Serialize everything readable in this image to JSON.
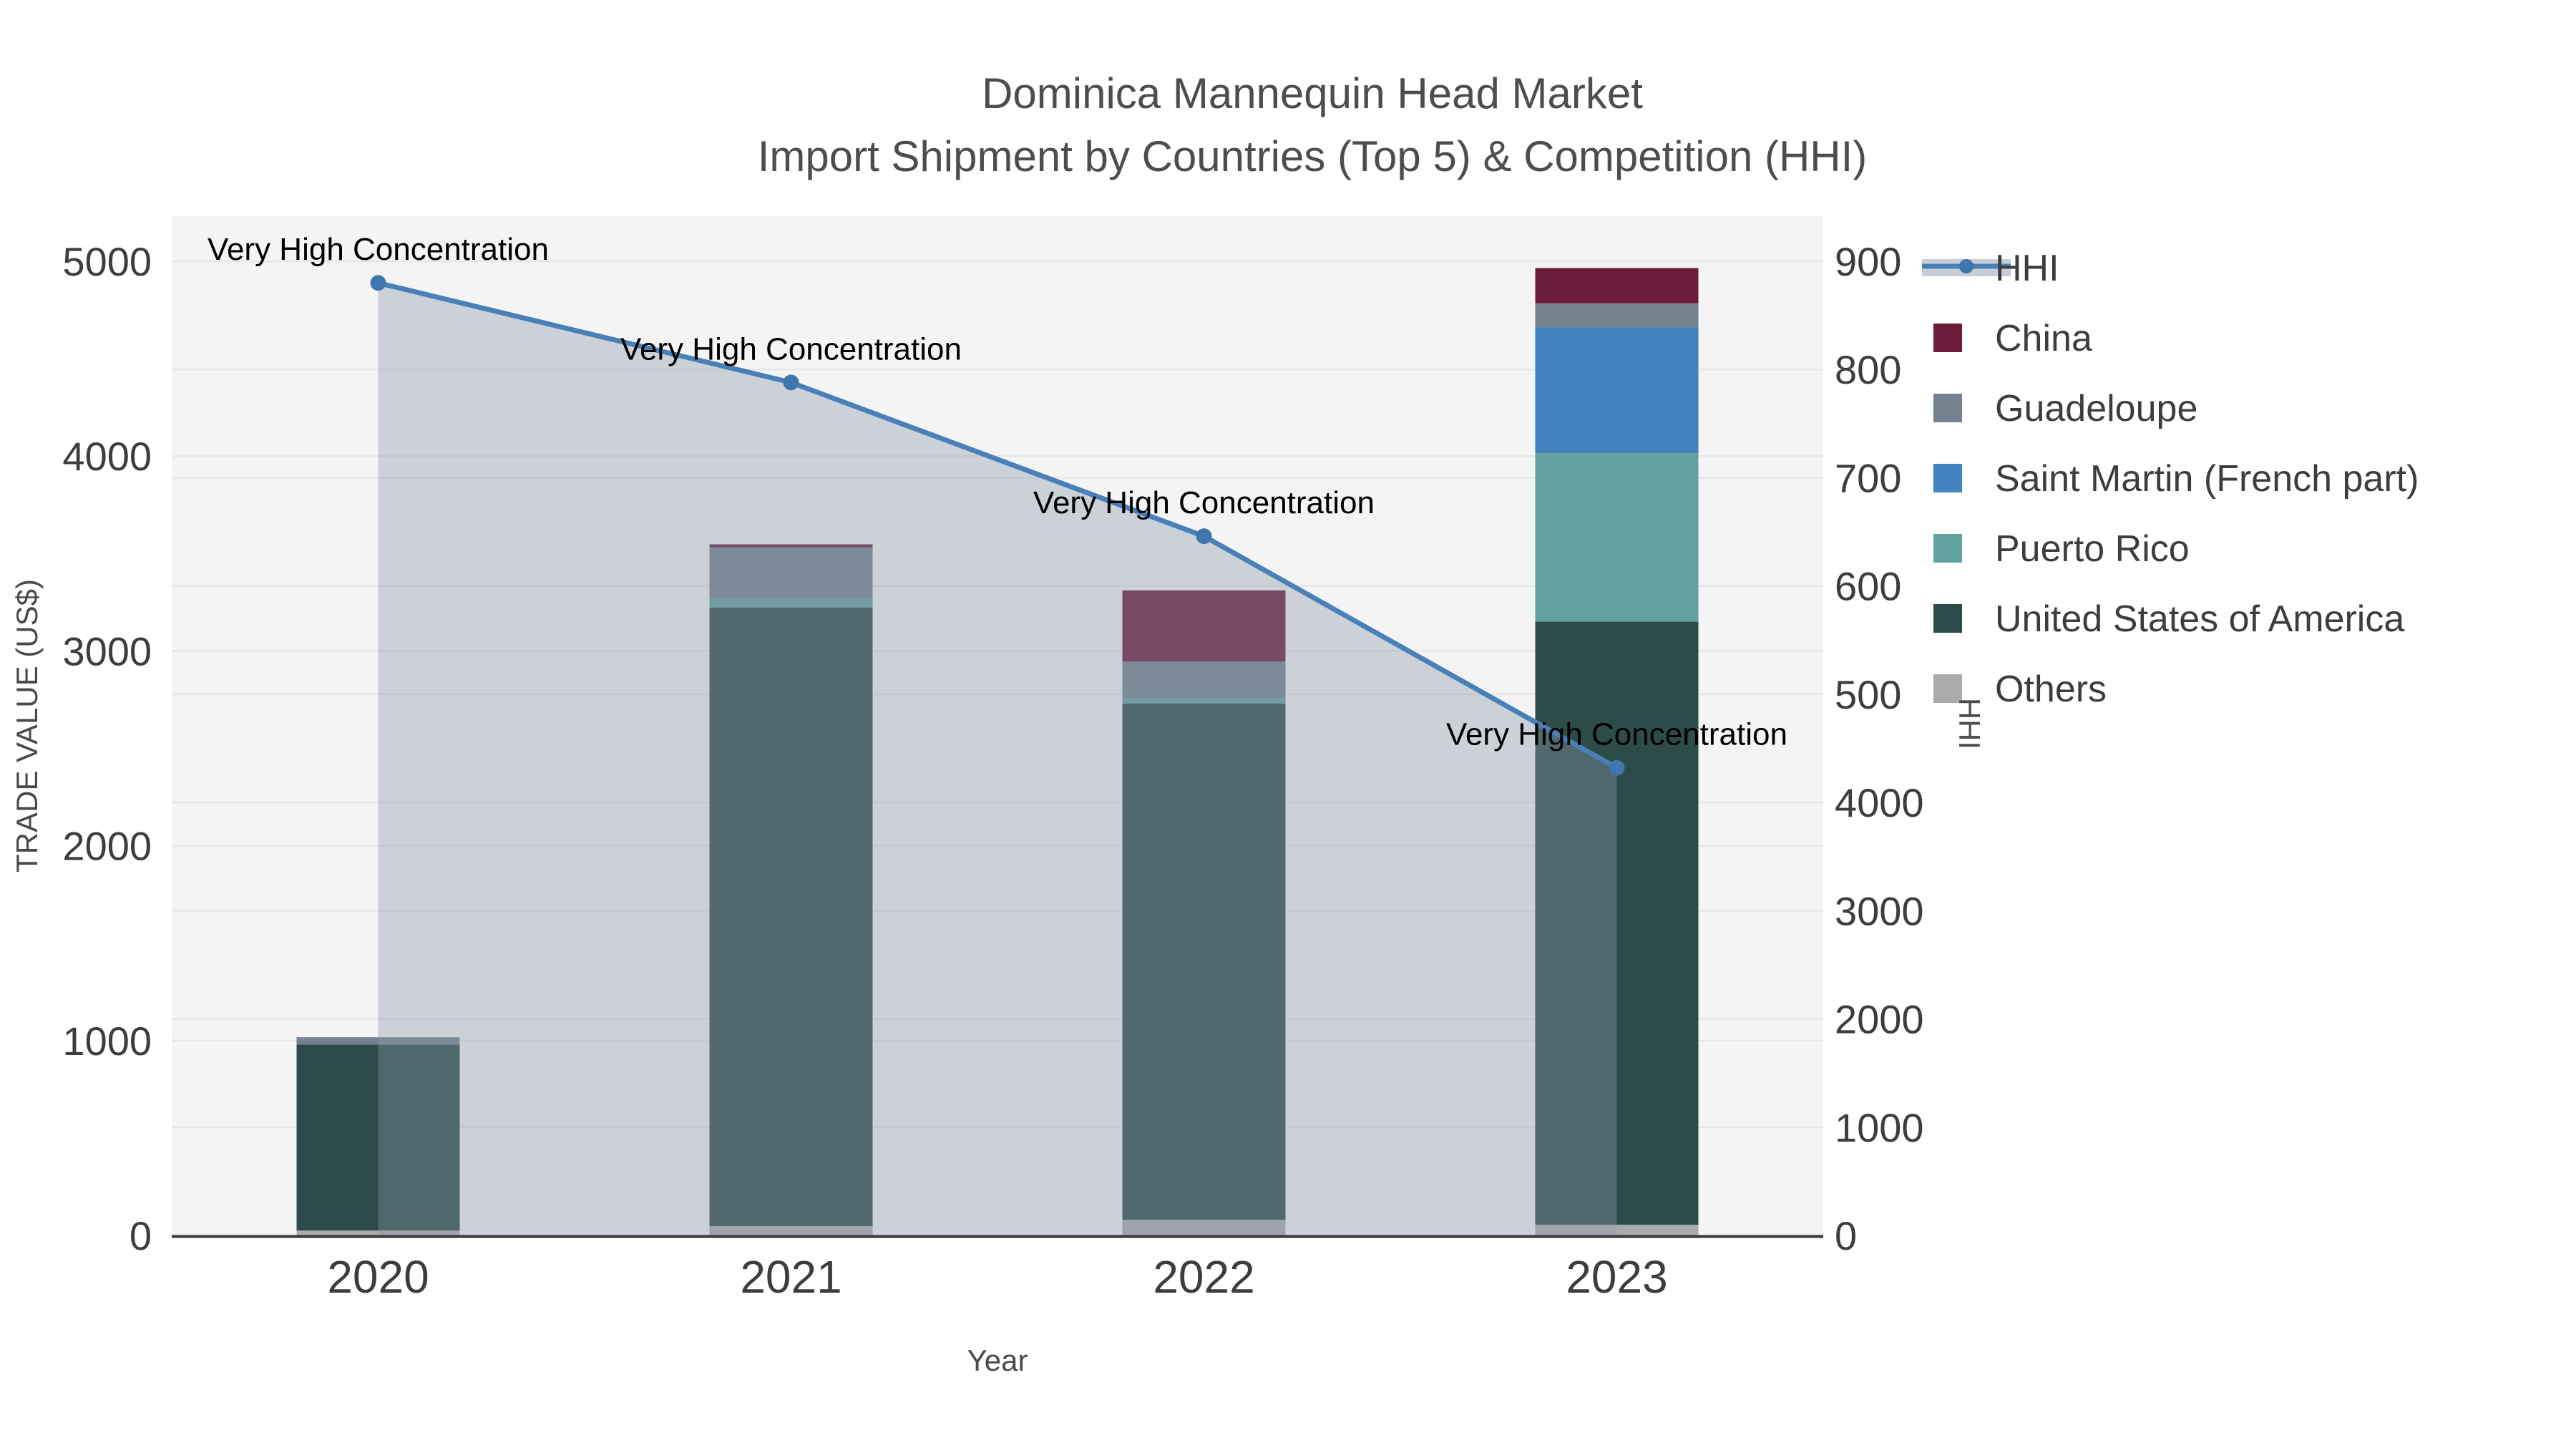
{
  "title": {
    "line1": "Dominica Mannequin Head Market",
    "line2": "Import Shipment by Countries (Top 5) & Competition (HHI)"
  },
  "axes": {
    "x_label": "Year",
    "y_left_label": "TRADE VALUE (US$)",
    "y_right_label": "HHI",
    "y_left_ticks": [
      "0",
      "1000",
      "2000",
      "3000",
      "4000",
      "5000"
    ],
    "y_right_ticks": [
      "0",
      "1000",
      "2000",
      "3000",
      "4000",
      "500",
      "600",
      "700",
      "800",
      "900"
    ],
    "x_ticks": [
      "2020",
      "2021",
      "2022",
      "2023"
    ]
  },
  "legend": [
    {
      "label": "HHI",
      "type": "line",
      "color_key": "hhi_line"
    },
    {
      "label": "China",
      "type": "patch",
      "color_key": "china"
    },
    {
      "label": "Guadeloupe",
      "type": "patch",
      "color_key": "guadeloupe"
    },
    {
      "label": "Saint Martin (French part)",
      "type": "patch",
      "color_key": "saint_martin"
    },
    {
      "label": "Puerto Rico",
      "type": "patch",
      "color_key": "puerto_rico"
    },
    {
      "label": "United States of America",
      "type": "patch",
      "color_key": "usa"
    },
    {
      "label": "Others",
      "type": "patch",
      "color_key": "others"
    }
  ],
  "colors": {
    "china": "#6C1B3B",
    "guadeloupe": "#74818F",
    "saint_martin": "#4282BE",
    "puerto_rico": "#61A2A1",
    "usa": "#2D4B49",
    "others": "#ABABAB",
    "hhi_line": "#4880B7",
    "hhi_marker": "#3F76AD",
    "hhi_fill": "rgba(140,152,172,0.38)",
    "hhi_legend_band": "#C7CCD6",
    "plot_bg": "#f4f4f4",
    "grid": "#e7e7e7",
    "spine": "#3a3a3a",
    "title_text": "#4d4d4d",
    "tick_text": "#3d3d3d",
    "label_text": "#4a4a4a",
    "annotation_text": "#000000"
  },
  "chart_data": {
    "type": "bar",
    "stacked": true,
    "title": "Dominica Mannequin Head Market — Import Shipment by Countries (Top 5) & Competition (HHI)",
    "categories": [
      "2020",
      "2021",
      "2022",
      "2023"
    ],
    "series": [
      {
        "name": "Others",
        "color_key": "others",
        "values": [
          25,
          48,
          80,
          55
        ]
      },
      {
        "name": "United States of America",
        "color_key": "usa",
        "values": [
          955,
          3175,
          2650,
          3095
        ]
      },
      {
        "name": "Puerto Rico",
        "color_key": "puerto_rico",
        "values": [
          0,
          44,
          29,
          865
        ]
      },
      {
        "name": "Saint Martin (French part)",
        "color_key": "saint_martin",
        "values": [
          0,
          0,
          0,
          645
        ]
      },
      {
        "name": "Guadeloupe",
        "color_key": "guadeloupe",
        "values": [
          37,
          265,
          187,
          125
        ]
      },
      {
        "name": "China",
        "color_key": "china",
        "values": [
          0,
          15,
          365,
          180
        ]
      }
    ],
    "line_series": {
      "name": "HHI",
      "axis": "right",
      "values": [
        8800,
        7880,
        6460,
        4320
      ],
      "area_fill": true
    },
    "xlabel": "Year",
    "ylabel_left": "TRADE VALUE (US$)",
    "ylabel_right": "HHI",
    "ylim_left": [
      0,
      5230
    ],
    "ylim_right": [
      0,
      9420
    ],
    "y_left_tick_values": [
      0,
      1000,
      2000,
      3000,
      4000,
      5000
    ],
    "y_right_tick_labels": [
      "0",
      "1000",
      "2000",
      "3000",
      "4000",
      "500",
      "600",
      "700",
      "800",
      "900"
    ],
    "grid": true,
    "legend_position": "upper right, outside plot",
    "annotations": [
      {
        "text": "Very High Concentration",
        "category": "2020"
      },
      {
        "text": "Very High Concentration",
        "category": "2021"
      },
      {
        "text": "Very High Concentration",
        "category": "2022"
      },
      {
        "text": "Very High Concentration",
        "category": "2023"
      }
    ]
  }
}
